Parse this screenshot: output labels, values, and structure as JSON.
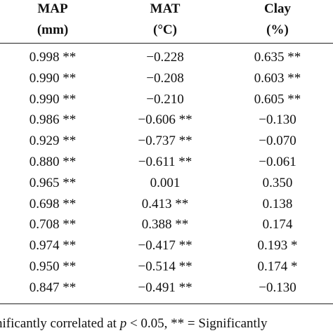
{
  "table": {
    "header": [
      [
        "MAP",
        "(mm)"
      ],
      [
        "MAT",
        "(°C)"
      ],
      [
        "Clay",
        "(%)"
      ]
    ],
    "rows": [
      [
        "0.998 **",
        "−0.228",
        "0.635 **"
      ],
      [
        "0.990 **",
        "−0.208",
        "0.603 **"
      ],
      [
        "0.990 **",
        "−0.210",
        "0.605 **"
      ],
      [
        "0.986 **",
        "−0.606 **",
        "−0.130"
      ],
      [
        "0.929 **",
        "−0.737 **",
        "−0.070"
      ],
      [
        "0.880 **",
        "−0.611 **",
        "−0.061"
      ],
      [
        "0.965 **",
        "0.001",
        "0.350"
      ],
      [
        "0.698 **",
        "0.413 **",
        "0.138"
      ],
      [
        "0.708 **",
        "0.388 **",
        "0.174"
      ],
      [
        "0.974 **",
        "−0.417 **",
        "0.193 *"
      ],
      [
        "0.950 **",
        "−0.514 **",
        "0.174 *"
      ],
      [
        "0.847 **",
        "−0.491 **",
        "−0.130"
      ]
    ],
    "footer": [
      "nificantly correlated at ",
      "p",
      " < 0.05, ** = Significantly"
    ]
  }
}
